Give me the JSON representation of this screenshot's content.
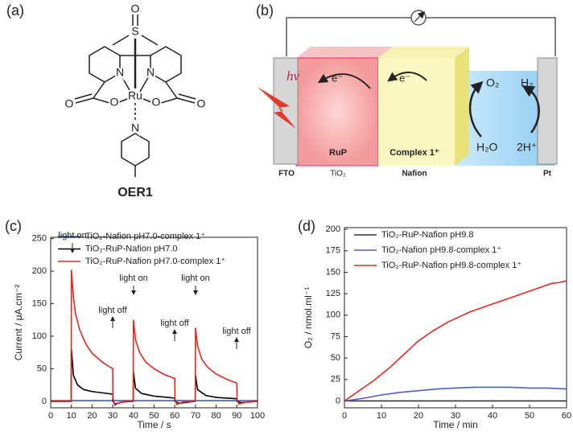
{
  "structure": {
    "label": "(a)",
    "name": "OER1",
    "atoms": [
      "O",
      "S",
      "N",
      "N",
      "Ru",
      "O",
      "O",
      "O",
      "O",
      "N"
    ]
  },
  "diagram": {
    "label": "(b)",
    "light": "hv",
    "electron_left": "e⁻",
    "electron_right": "e⁻",
    "oxygen": "O₂",
    "hydrogen": "H₂",
    "water": "H₂O",
    "protons": "2H⁺",
    "dye": "RuP",
    "catalyst": "Complex 1⁺",
    "electrode_left": "FTO",
    "semiconductor": "TiO₂",
    "membrane": "Nafion",
    "electrode_right": "Pt"
  },
  "chart_data": [
    {
      "type": "line",
      "panel_label": "(c)",
      "x_label": "Time / s",
      "y_label": "Current / μA.cm⁻²",
      "xlim": [
        0,
        100
      ],
      "xticks": [
        0,
        10,
        20,
        30,
        40,
        50,
        60,
        70,
        80,
        90,
        100
      ],
      "ylim": [
        -10,
        252
      ],
      "yticks": [
        0,
        50,
        100,
        150,
        200,
        250
      ],
      "legend": "upper left",
      "annotations": [
        "light on",
        "light off",
        "light on",
        "light off",
        "light on",
        "light off"
      ],
      "series": [
        {
          "name": "TiO₂-Nafion pH7.0-complex 1⁺",
          "color": "#3a5fcd",
          "x": [
            0,
            100
          ],
          "values": [
            1,
            1
          ]
        },
        {
          "name": "TiO₂-RuP-Nafion pH7.0",
          "color": "#000000",
          "x": [
            0,
            9.9,
            10,
            11,
            13,
            16,
            20,
            25,
            30,
            30.1,
            31,
            35,
            39.9,
            40,
            41,
            44,
            50,
            60,
            60.1,
            62,
            69.9,
            70,
            71,
            75,
            80,
            90,
            90.1,
            92,
            100
          ],
          "values": [
            0,
            0,
            80,
            40,
            25,
            18,
            15,
            13,
            11,
            0,
            -4,
            -1,
            0,
            45,
            20,
            12,
            8,
            5,
            0,
            -3,
            0,
            40,
            18,
            9,
            6,
            4,
            0,
            -2,
            0
          ]
        },
        {
          "name": "TiO₂-RuP-Nafion pH7.0-complex 1⁺",
          "color": "#e8251f",
          "x": [
            0,
            9.9,
            10,
            11,
            12,
            14,
            17,
            20,
            25,
            30,
            30.1,
            31,
            33,
            36,
            39.9,
            40,
            41,
            43,
            46,
            50,
            55,
            60,
            60.1,
            61,
            64,
            69.9,
            70,
            71,
            73,
            76,
            80,
            85,
            90,
            90.1,
            91,
            95,
            100
          ],
          "values": [
            0,
            0,
            202,
            160,
            135,
            110,
            88,
            74,
            60,
            50,
            5,
            -6,
            -2,
            0,
            0,
            125,
            95,
            75,
            60,
            50,
            41,
            35,
            3,
            -5,
            -1,
            0,
            113,
            85,
            65,
            52,
            42,
            34,
            28,
            3,
            -4,
            -1,
            0
          ]
        }
      ]
    },
    {
      "type": "line",
      "panel_label": "(d)",
      "x_label": "Time / min",
      "y_label": "O₂ / nmol.ml⁻¹",
      "xlim": [
        0,
        60
      ],
      "xticks": [
        0,
        10,
        20,
        30,
        40,
        50,
        60
      ],
      "ylim": [
        -8,
        202
      ],
      "yticks": [
        0,
        25,
        50,
        75,
        100,
        125,
        150,
        175,
        200
      ],
      "legend": "upper left",
      "series": [
        {
          "name": "TiO₂-RuP-Nafion pH9.8",
          "color": "#333333",
          "x": [
            0,
            10,
            20,
            30,
            40,
            50,
            60
          ],
          "values": [
            0,
            0,
            0,
            0,
            0,
            0,
            0
          ]
        },
        {
          "name": "TiO₂-Nafion pH9.8-complex 1⁺",
          "color": "#4f5bd5",
          "x": [
            0,
            5,
            10,
            15,
            20,
            25,
            30,
            35,
            40,
            45,
            50,
            55,
            60
          ],
          "values": [
            0,
            3,
            7,
            10,
            12,
            14,
            15,
            16,
            16,
            16,
            15,
            15,
            14
          ]
        },
        {
          "name": "TiO₂-RuP-Nafion pH9.8-complex 1⁺",
          "color": "#e8251f",
          "x": [
            0,
            1,
            2,
            3,
            4,
            5,
            6,
            7,
            8,
            10,
            12,
            14,
            16,
            18,
            20,
            22,
            24,
            26,
            28,
            30,
            32,
            34,
            36,
            38,
            40,
            42,
            44,
            46,
            48,
            50,
            52,
            54,
            56,
            58,
            60
          ],
          "values": [
            0,
            3,
            6,
            9,
            12,
            15,
            18,
            21,
            24,
            31,
            38,
            46,
            54,
            62,
            70,
            76,
            82,
            87,
            92,
            96,
            100,
            104,
            107,
            110,
            113,
            116,
            119,
            122,
            125,
            128,
            131,
            134,
            137,
            138,
            140
          ]
        }
      ]
    }
  ]
}
